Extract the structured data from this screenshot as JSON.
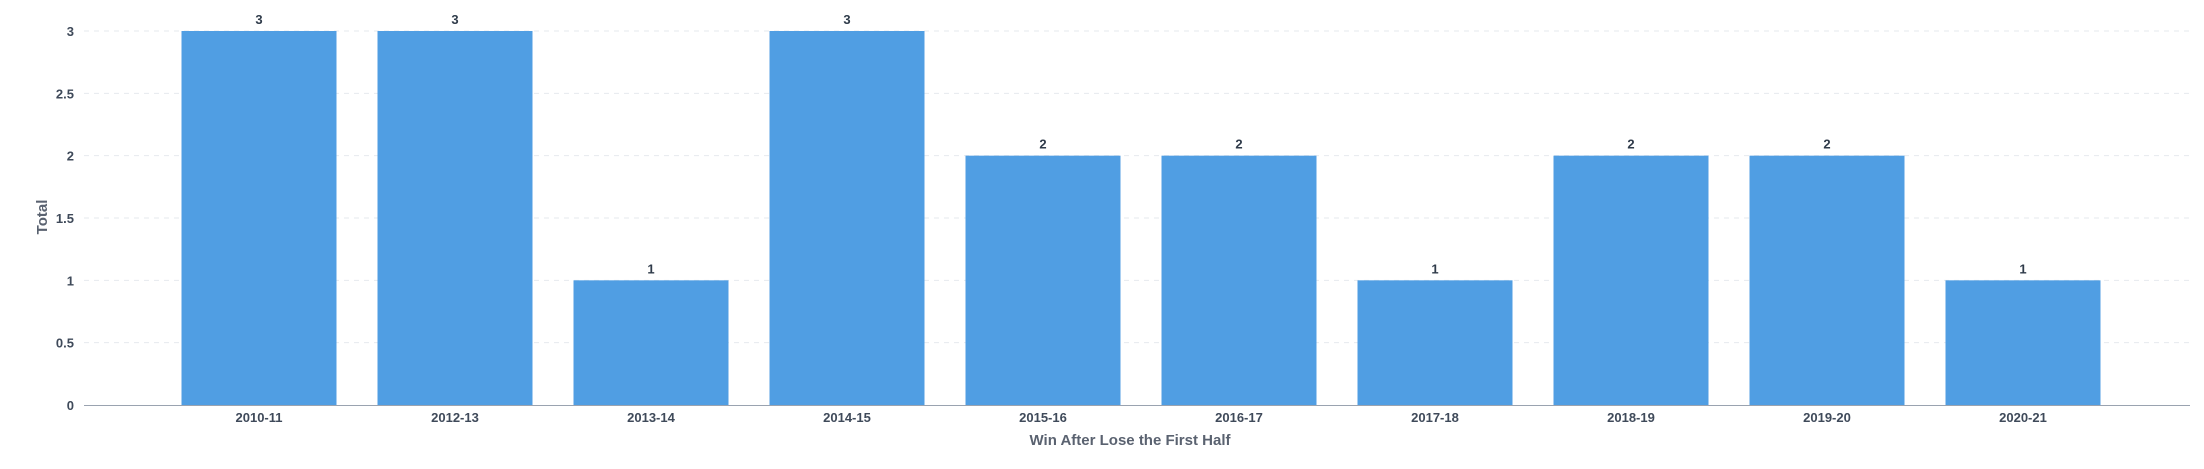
{
  "chart_data": {
    "type": "bar",
    "categories": [
      "2010-11",
      "2012-13",
      "2013-14",
      "2014-15",
      "2015-16",
      "2016-17",
      "2017-18",
      "2018-19",
      "2019-20",
      "2020-21"
    ],
    "values": [
      3,
      3,
      1,
      3,
      2,
      2,
      1,
      2,
      2,
      1
    ],
    "data_labels": [
      "3",
      "3",
      "1",
      "3",
      "2",
      "2",
      "1",
      "2",
      "2",
      "1"
    ],
    "title": "",
    "xlabel": "Win After Lose the First Half",
    "ylabel": "Total",
    "ylim": [
      0,
      3
    ],
    "yticks": [
      0,
      0.5,
      1,
      1.5,
      2,
      2.5,
      3
    ],
    "ytick_labels": [
      "0",
      "0.5",
      "1",
      "1.5",
      "2",
      "2.5",
      "3"
    ],
    "grid": true,
    "legend": "none",
    "bar_color": "#509ee3"
  }
}
